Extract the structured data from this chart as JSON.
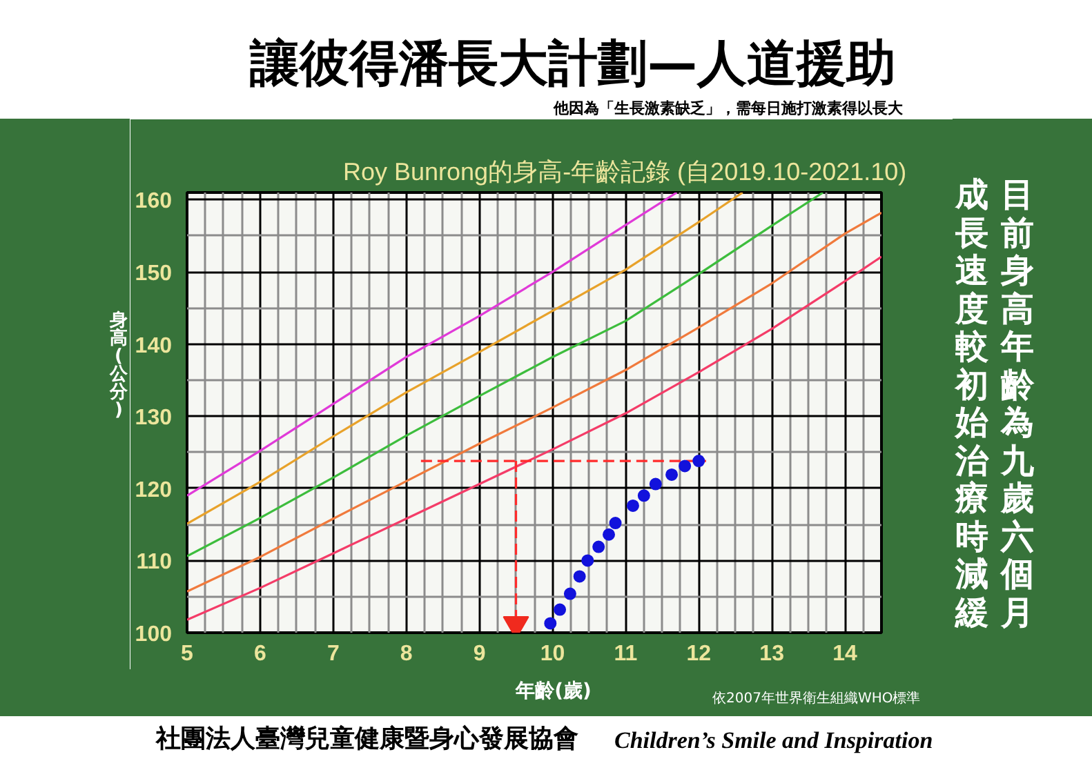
{
  "chart_data": {
    "type": "line",
    "title": "Roy Bunrong的身高-年齡記錄 (自2019.10-2021.10)",
    "xlabel": "年齡(歲)",
    "ylabel": "身高(公分)",
    "annotations": [
      "讓彼得潘長大計劃—人道援助",
      "他因為「生長激素缺乏」，需每日施打激素得以長大",
      "目前身高年齡為九歲六個月",
      "成長速度較初始治療時減緩",
      "依2007年世界衛生組織WHO標準",
      "社團法人臺灣兒童健康暨身心發展協會",
      "Children’s Smile and Inspiration"
    ],
    "xlim": [
      5,
      14.5
    ],
    "ylim": [
      100,
      161
    ],
    "xticks": [
      5,
      {
        "value": 5.25,
        "label": null
      },
      {
        "value": 5.5,
        "label": null
      },
      {
        "value": 5.75,
        "label": null
      },
      6,
      {
        "value": 6.25,
        "label": null
      },
      {
        "value": 6.5,
        "label": null
      },
      {
        "value": 6.75,
        "label": null
      },
      7,
      {
        "value": 7.25,
        "label": null
      },
      {
        "value": 7.5,
        "label": null
      },
      {
        "value": 7.75,
        "label": null
      },
      8,
      {
        "value": 8.25,
        "label": null
      },
      {
        "value": 8.5,
        "label": null
      },
      {
        "value": 8.75,
        "label": null
      },
      9,
      {
        "value": 9.25,
        "label": null
      },
      {
        "value": 9.5,
        "label": null
      },
      {
        "value": 9.75,
        "label": null
      },
      10,
      {
        "value": 10.25,
        "label": null
      },
      {
        "value": 10.5,
        "label": null
      },
      {
        "value": 10.75,
        "label": null
      },
      11,
      {
        "value": 11.25,
        "label": null
      },
      {
        "value": 11.5,
        "label": null
      },
      {
        "value": 11.75,
        "label": null
      },
      12,
      {
        "value": 12.25,
        "label": null
      },
      {
        "value": 12.5,
        "label": null
      },
      {
        "value": 12.75,
        "label": null
      },
      13,
      {
        "value": 13.25,
        "label": null
      },
      {
        "value": 13.5,
        "label": null
      },
      {
        "value": 13.75,
        "label": null
      },
      14,
      {
        "value": 14.25,
        "label": null
      }
    ],
    "yticks": [
      100,
      {
        "value": 105,
        "label": null
      },
      110,
      {
        "value": 115,
        "label": null
      },
      120,
      {
        "value": 125,
        "label": null
      },
      130,
      {
        "value": 135,
        "label": null
      },
      140,
      {
        "value": 145,
        "label": null
      },
      150,
      {
        "value": 155,
        "label": null
      },
      160
    ],
    "grid": true,
    "series": [
      {
        "color": "#e03ad8",
        "x": [
          5,
          6,
          7,
          8,
          9,
          10,
          11,
          11.7
        ],
        "values": [
          119.0,
          125.2,
          131.7,
          138.2,
          143.9,
          150.0,
          156.5,
          161
        ]
      },
      {
        "color": "#e8a22a",
        "x": [
          5,
          6,
          7,
          8,
          9,
          10,
          11,
          12,
          12.6
        ],
        "values": [
          115.1,
          120.9,
          127.2,
          133.3,
          138.9,
          144.6,
          150.3,
          156.9,
          161
        ]
      },
      {
        "color": "#3dbd3d",
        "x": [
          5,
          6,
          7,
          8,
          9,
          10,
          11,
          12,
          13,
          13.7
        ],
        "values": [
          110.6,
          115.9,
          121.5,
          127.3,
          132.8,
          138.2,
          143.2,
          149.7,
          156.4,
          161
        ]
      },
      {
        "color": "#f07a3c",
        "x": [
          5,
          6,
          7,
          8,
          9,
          10,
          11,
          12,
          13,
          14,
          14.5
        ],
        "values": [
          105.7,
          110.5,
          115.8,
          121.0,
          126.2,
          131.2,
          136.4,
          142.3,
          148.4,
          155.3,
          158.2
        ]
      },
      {
        "color": "#f43c68",
        "x": [
          5,
          6,
          7,
          8,
          9,
          10,
          11,
          12,
          13,
          14,
          14.5
        ],
        "values": [
          101.8,
          106.2,
          111.0,
          115.8,
          120.6,
          125.4,
          130.4,
          136.1,
          142.1,
          148.7,
          152.1
        ]
      },
      {
        "color": "#ff2b2b",
        "line_style": "dashed",
        "x": [
          8.2,
          12.1
        ],
        "values": [
          123.8,
          123.8
        ]
      },
      {
        "color": "#ff2b2b",
        "line_style": "dashed",
        "x": [
          9.5,
          9.5
        ],
        "values": [
          123.8,
          102
        ]
      },
      {
        "type": "scatter",
        "color": "#f02a1e",
        "marker": "triangle",
        "x": [
          9.5
        ],
        "values": [
          101.2
        ]
      },
      {
        "type": "scatter",
        "color": "#1212dc",
        "marker": "circle",
        "x": [
          9.97,
          10.1,
          10.24,
          10.37,
          10.48,
          10.63,
          10.77,
          10.86,
          11.1,
          11.25,
          11.41,
          11.63,
          11.81,
          12.0
        ],
        "values": [
          101.3,
          103.2,
          105.4,
          107.8,
          110.0,
          111.9,
          113.6,
          115.2,
          117.6,
          119.0,
          120.6,
          121.9,
          123.1,
          123.8
        ]
      }
    ]
  }
}
